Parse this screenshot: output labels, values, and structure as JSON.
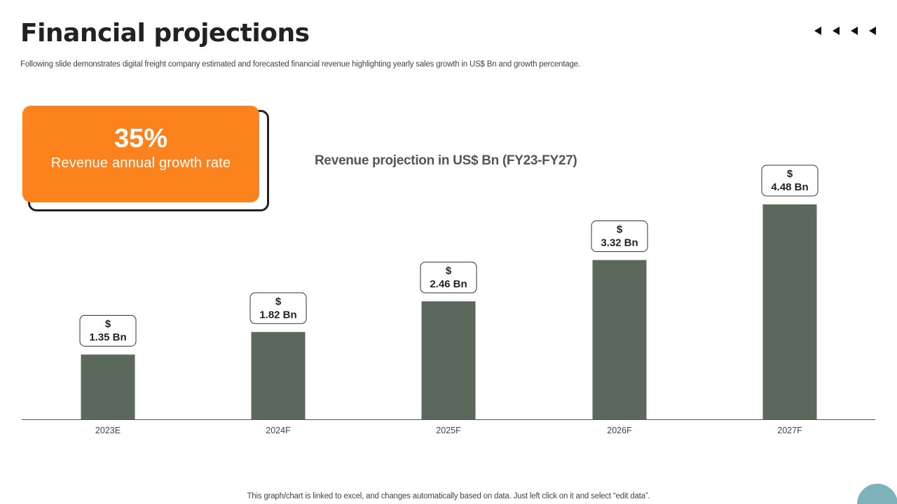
{
  "slide": {
    "title": "Financial projections",
    "subtitle": "Following slide demonstrates digital freight company estimated and forecasted financial revenue highlighting yearly sales growth in US$ Bn and growth percentage.",
    "footer_note": "This graph/chart is linked to excel,  and changes automatically based on data. Just left click on it and select “edit data”."
  },
  "kpi": {
    "value": "35%",
    "label": "Revenue annual growth rate",
    "color": "#fb821c"
  },
  "colors": {
    "bar": "#5a695c",
    "accent_circle": "#7db3b8"
  },
  "chart_data": {
    "type": "bar",
    "title": "Revenue projection in US$ Bn (FY23-FY27)",
    "categories": [
      "2023E",
      "2024F",
      "2025F",
      "2026F",
      "2027F"
    ],
    "values": [
      1.35,
      1.82,
      2.46,
      3.32,
      4.48
    ],
    "data_labels": [
      [
        "$",
        "1.35 Bn"
      ],
      [
        "$",
        "1.82 Bn"
      ],
      [
        "$",
        "2.46 Bn"
      ],
      [
        "$",
        "3.32 Bn"
      ],
      [
        "$",
        "4.48 Bn"
      ]
    ],
    "ylim": [
      0,
      4.48
    ],
    "grid": false,
    "legend": "none",
    "xlabel": "",
    "ylabel": ""
  }
}
